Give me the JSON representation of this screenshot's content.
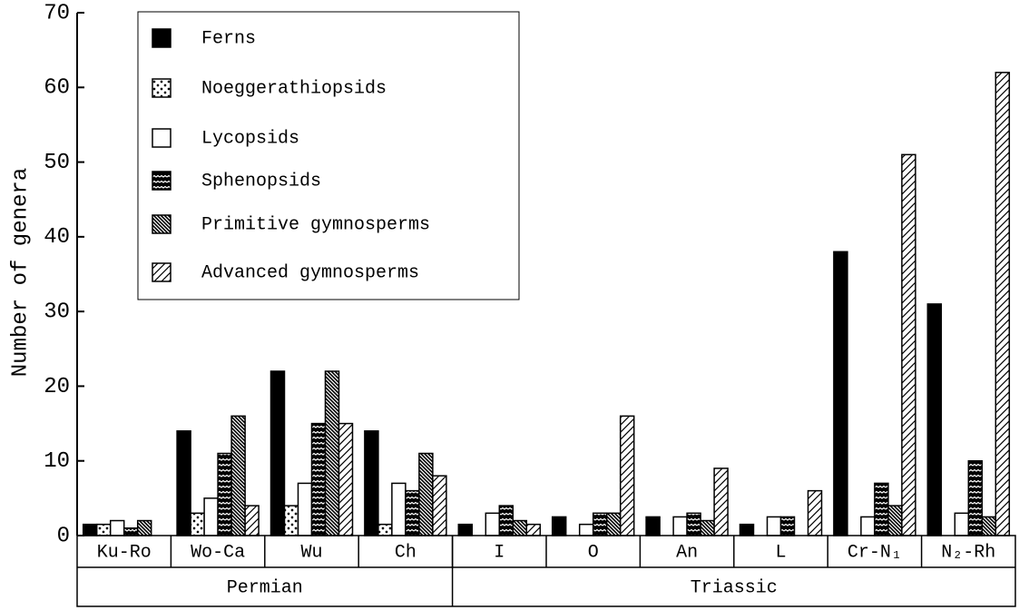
{
  "chart_data": {
    "type": "bar",
    "y_label": "Number of genera",
    "categories": [
      "Ku-Ro",
      "Wo-Ca",
      "Wu",
      "Ch",
      "I",
      "O",
      "An",
      "L",
      "Cr-N₁",
      "N₂-Rh"
    ],
    "groups": [
      {
        "name": "Permian",
        "count": 4
      },
      {
        "name": "Triassic",
        "count": 6
      }
    ],
    "series": [
      {
        "name": "Ferns",
        "color": "#000000",
        "pattern": "solid",
        "values": [
          1.5,
          14,
          22,
          14,
          1.5,
          2.5,
          2.5,
          1.5,
          38,
          31
        ]
      },
      {
        "name": "Noeggerathiopsids",
        "color": "#000000",
        "pattern": "dots",
        "values": [
          1.5,
          3,
          4,
          1.5,
          0,
          0,
          0,
          0,
          0,
          0
        ]
      },
      {
        "name": "Lycopsids",
        "color": "#000000",
        "pattern": "none",
        "values": [
          2,
          5,
          7,
          7,
          3,
          1.5,
          2.5,
          2.5,
          2.5,
          3
        ]
      },
      {
        "name": "Sphenopsids",
        "color": "#000000",
        "pattern": "waves",
        "values": [
          1,
          11,
          15,
          6,
          4,
          3,
          3,
          2.5,
          7,
          10
        ]
      },
      {
        "name": "Primitive gymnosperms",
        "color": "#000000",
        "pattern": "dense-hatch",
        "values": [
          2,
          16,
          22,
          11,
          2,
          3,
          2,
          0,
          4,
          2.5
        ]
      },
      {
        "name": "Advanced gymnosperms",
        "color": "#000000",
        "pattern": "hatch",
        "values": [
          0,
          4,
          15,
          8,
          1.5,
          16,
          9,
          6,
          51,
          62
        ]
      }
    ],
    "ylim": [
      0,
      70
    ],
    "yticks": [
      0,
      10,
      20,
      30,
      40,
      50,
      60,
      70
    ],
    "legend": "upper left"
  }
}
